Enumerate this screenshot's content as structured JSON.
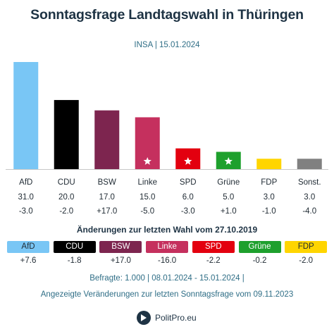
{
  "header": {
    "title": "Sonntagsfrage Landtagswahl in Thüringen",
    "subtitle": "INSA | 15.01.2024"
  },
  "chart_data": {
    "type": "bar",
    "categories": [
      "AfD",
      "CDU",
      "BSW",
      "Linke",
      "SPD",
      "Grüne",
      "FDP",
      "Sonst."
    ],
    "values": [
      31.0,
      20.0,
      17.0,
      15.0,
      6.0,
      5.0,
      3.0,
      3.0
    ],
    "value_labels": [
      "31.0",
      "20.0",
      "17.0",
      "15.0",
      "6.0",
      "5.0",
      "3.0",
      "3.0"
    ],
    "changes": [
      "-3.0",
      "-2.0",
      "+17.0",
      "-5.0",
      "-3.0",
      "+1.0",
      "-1.0",
      "-4.0"
    ],
    "colors": [
      "#79c6f5",
      "#000000",
      "#7d254f",
      "#c5305e",
      "#e3000f",
      "#1ea02d",
      "#ffd500",
      "#808080"
    ],
    "star_markers": [
      "",
      "",
      "",
      "star",
      "star",
      "star",
      "",
      ""
    ],
    "ylim": [
      0,
      31
    ]
  },
  "changes_section": {
    "title": "Änderungen zur letzten Wahl vom 27.10.2019",
    "parties": [
      {
        "name": "AfD",
        "change": "+7.6",
        "color": "#79c6f5",
        "text_color": "#1f2a33"
      },
      {
        "name": "CDU",
        "change": "-1.8",
        "color": "#000000",
        "text_color": "#ffffff"
      },
      {
        "name": "BSW",
        "change": "+17.0",
        "color": "#7d254f",
        "text_color": "#ffffff"
      },
      {
        "name": "Linke",
        "change": "-16.0",
        "color": "#c5305e",
        "text_color": "#ffffff"
      },
      {
        "name": "SPD",
        "change": "-2.2",
        "color": "#e3000f",
        "text_color": "#ffffff"
      },
      {
        "name": "Grüne",
        "change": "-0.2",
        "color": "#1ea02d",
        "text_color": "#ffffff"
      },
      {
        "name": "FDP",
        "change": "-2.0",
        "color": "#ffd500",
        "text_color": "#1f2a33"
      }
    ]
  },
  "footer": {
    "survey_info": "Befragte: 1.000 | 08.01.2024 - 15.01.2024 |",
    "changes_note": "Angezeigte Veränderungen zur letzten Sonntagsfrage vom 09.11.2023",
    "brand": "PolitPro.eu"
  }
}
